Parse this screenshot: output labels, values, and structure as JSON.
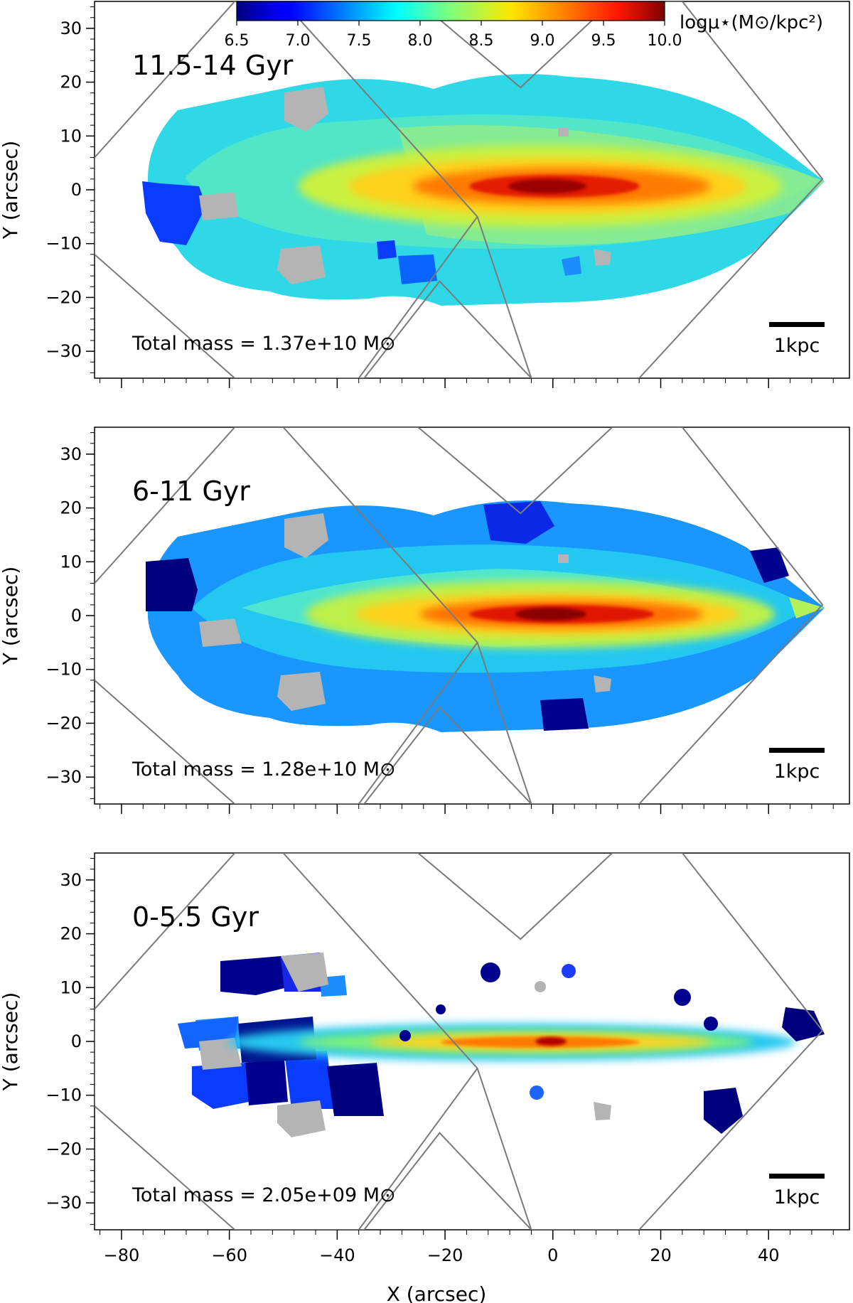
{
  "chart_data": {
    "type": "heatmap",
    "xlabel": "X (arcsec)",
    "ylabel": "Y (arcsec)",
    "xlim": [
      -85,
      55
    ],
    "ylim": [
      -35,
      35
    ],
    "x_ticks": [
      -80,
      -60,
      -40,
      -20,
      0,
      20,
      40
    ],
    "x_tick_labels": [
      "−80",
      "−60",
      "−40",
      "−20",
      "0",
      "20",
      "40"
    ],
    "y_ticks": [
      30,
      20,
      10,
      0,
      -10,
      -20,
      -30
    ],
    "y_tick_labels": [
      "30",
      "20",
      "10",
      "0",
      "−10",
      "−20",
      "−30"
    ],
    "colorbar": {
      "label": "logμ⋆(M⊙/kpc²)",
      "range": [
        6.5,
        10.0
      ],
      "ticks": [
        6.5,
        7.0,
        7.5,
        8.0,
        8.5,
        9.0,
        9.5,
        10.0
      ],
      "tick_labels": [
        "6.5",
        "7.0",
        "7.5",
        "8.0",
        "8.5",
        "9.0",
        "9.5",
        "10.0"
      ],
      "colormap": "jet"
    },
    "scale_bar_label": "1kpc",
    "panels": [
      {
        "age_range": "11.5-14 Gyr",
        "total_mass_text": "Total mass = 1.37e+10 M⊙",
        "total_mass": 13700000000.0
      },
      {
        "age_range": "6-11 Gyr",
        "total_mass_text": "Total mass = 1.28e+10 M⊙",
        "total_mass": 12800000000.0
      },
      {
        "age_range": "0-5.5 Gyr",
        "total_mass_text": "Total mass = 2.05e+09 M⊙",
        "total_mass": 2050000000.0
      }
    ],
    "mosaic_outline": [
      [
        -85,
        6
      ],
      [
        -59,
        35
      ],
      [
        -25,
        35
      ],
      [
        -6,
        19
      ],
      [
        11,
        35
      ],
      [
        24,
        35
      ],
      [
        50,
        2
      ],
      [
        16,
        -35
      ],
      [
        -4,
        -35
      ],
      [
        -21,
        -17
      ],
      [
        -35,
        -35
      ],
      [
        -59,
        -35
      ],
      [
        -85,
        -12
      ]
    ],
    "pointing_diagonals": [
      [
        [
          -50,
          35
        ],
        [
          -14,
          -5
        ]
      ],
      [
        [
          -14,
          -5
        ],
        [
          -4,
          -35
        ]
      ],
      [
        [
          -36,
          -35
        ],
        [
          -14,
          -5
        ]
      ]
    ]
  }
}
